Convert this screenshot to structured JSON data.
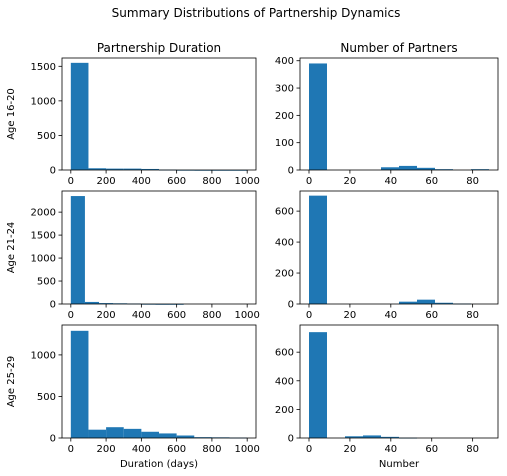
{
  "suptitle": "Summary Distributions of Partnership Dynamics",
  "colors": {
    "bar": "#1f77b4",
    "axes": "#000000",
    "background": "#ffffff"
  },
  "chart_data": [
    {
      "type": "bar",
      "id": "p00",
      "title": "Partnership Duration",
      "ylabel": "Age 16-20",
      "xlabel": "",
      "xlim": [
        -50,
        1050
      ],
      "ylim": [
        0,
        1620
      ],
      "xticks": [
        0,
        200,
        400,
        600,
        800,
        1000
      ],
      "yticks": [
        0,
        500,
        1000,
        1500
      ],
      "bins": [
        [
          0,
          100
        ],
        [
          100,
          200
        ],
        [
          200,
          300
        ],
        [
          300,
          400
        ],
        [
          400,
          500
        ],
        [
          500,
          600
        ],
        [
          600,
          700
        ],
        [
          700,
          800
        ],
        [
          800,
          900
        ],
        [
          900,
          1000
        ]
      ],
      "values": [
        1550,
        25,
        20,
        20,
        15,
        5,
        2,
        1,
        1,
        1
      ]
    },
    {
      "type": "bar",
      "id": "p01",
      "title": "Number of Partners",
      "ylabel": "",
      "xlabel": "",
      "xlim": [
        -4.4,
        92.4
      ],
      "ylim": [
        0,
        410
      ],
      "xticks": [
        0,
        20,
        40,
        60,
        80
      ],
      "yticks": [
        0,
        100,
        200,
        300,
        400
      ],
      "bins": [
        [
          0,
          8.8
        ],
        [
          8.8,
          17.6
        ],
        [
          17.6,
          26.4
        ],
        [
          26.4,
          35.2
        ],
        [
          35.2,
          44
        ],
        [
          44,
          52.8
        ],
        [
          52.8,
          61.6
        ],
        [
          61.6,
          70.4
        ],
        [
          70.4,
          79.2
        ],
        [
          79.2,
          88
        ]
      ],
      "values": [
        390,
        0,
        0,
        0,
        10,
        15,
        8,
        3,
        0,
        3
      ]
    },
    {
      "type": "bar",
      "id": "p10",
      "title": "",
      "ylabel": "Age 21-24",
      "xlabel": "",
      "xlim": [
        -50,
        1050
      ],
      "ylim": [
        0,
        2460
      ],
      "xticks": [
        0,
        200,
        400,
        600,
        800,
        1000
      ],
      "yticks": [
        0,
        500,
        1000,
        1500,
        2000
      ],
      "bins": [
        [
          0,
          80
        ],
        [
          80,
          160
        ],
        [
          160,
          240
        ],
        [
          240,
          320
        ],
        [
          320,
          400
        ],
        [
          400,
          480
        ],
        [
          480,
          560
        ],
        [
          560,
          640
        ],
        [
          640,
          720
        ],
        [
          720,
          800
        ]
      ],
      "values": [
        2350,
        45,
        20,
        15,
        10,
        3,
        1,
        1,
        0,
        0
      ]
    },
    {
      "type": "bar",
      "id": "p11",
      "title": "",
      "ylabel": "",
      "xlabel": "",
      "xlim": [
        -4.4,
        92.4
      ],
      "ylim": [
        0,
        730
      ],
      "xticks": [
        0,
        20,
        40,
        60,
        80
      ],
      "yticks": [
        0,
        200,
        400,
        600
      ],
      "bins": [
        [
          0,
          8.8
        ],
        [
          8.8,
          17.6
        ],
        [
          17.6,
          26.4
        ],
        [
          26.4,
          35.2
        ],
        [
          35.2,
          44
        ],
        [
          44,
          52.8
        ],
        [
          52.8,
          61.6
        ],
        [
          61.6,
          70.4
        ],
        [
          70.4,
          79.2
        ],
        [
          79.2,
          88
        ]
      ],
      "values": [
        700,
        0,
        0,
        0,
        0,
        15,
        28,
        8,
        3,
        0
      ]
    },
    {
      "type": "bar",
      "id": "p20",
      "title": "",
      "ylabel": "Age 25-29",
      "xlabel": "Duration (days)",
      "xlim": [
        -50,
        1050
      ],
      "ylim": [
        0,
        1360
      ],
      "xticks": [
        0,
        200,
        400,
        600,
        800,
        1000
      ],
      "yticks": [
        0,
        500,
        1000
      ],
      "bins": [
        [
          0,
          100
        ],
        [
          100,
          200
        ],
        [
          200,
          300
        ],
        [
          300,
          400
        ],
        [
          400,
          500
        ],
        [
          500,
          600
        ],
        [
          600,
          700
        ],
        [
          700,
          800
        ],
        [
          800,
          900
        ],
        [
          900,
          1000
        ]
      ],
      "values": [
        1290,
        100,
        130,
        110,
        75,
        55,
        30,
        10,
        8,
        5
      ]
    },
    {
      "type": "bar",
      "id": "p21",
      "title": "",
      "ylabel": "",
      "xlabel": "Number",
      "xlim": [
        -4.4,
        92.4
      ],
      "ylim": [
        0,
        790
      ],
      "xticks": [
        0,
        20,
        40,
        60,
        80
      ],
      "yticks": [
        0,
        200,
        400,
        600
      ],
      "bins": [
        [
          0,
          8.8
        ],
        [
          8.8,
          17.6
        ],
        [
          17.6,
          26.4
        ],
        [
          26.4,
          35.2
        ],
        [
          35.2,
          44
        ],
        [
          44,
          52.8
        ],
        [
          52.8,
          61.6
        ],
        [
          61.6,
          70.4
        ],
        [
          70.4,
          79.2
        ],
        [
          79.2,
          88
        ]
      ],
      "values": [
        740,
        0,
        12,
        18,
        8,
        2,
        0,
        0,
        0,
        0
      ]
    }
  ]
}
